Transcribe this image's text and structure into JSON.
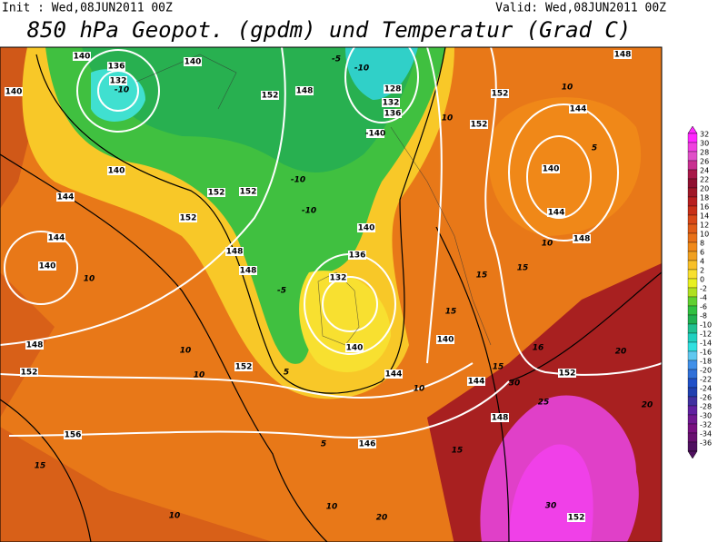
{
  "header": {
    "init": "Init : Wed,08JUN2011 00Z",
    "valid": "Valid: Wed,08JUN2011 00Z",
    "title": "850 hPa Geopot. (gpdm) und Temperatur (Grad C)"
  },
  "map": {
    "contour_labels": [
      "140",
      "140",
      "136",
      "132",
      "-10",
      "140",
      "152",
      "148",
      "-5",
      "-10",
      "128",
      "132",
      "136",
      "-140",
      "10",
      "152",
      "152",
      "148",
      "10",
      "144",
      "140",
      "144",
      "148",
      "10",
      "5",
      "140",
      "144",
      "144",
      "140",
      "10",
      "152",
      "152",
      "152",
      "148",
      "148",
      "140",
      "136",
      "132",
      "-5",
      "-10",
      "-10",
      "140",
      "144",
      "148",
      "152",
      "10",
      "10",
      "152",
      "5",
      "156",
      "15",
      "146",
      "5",
      "10",
      "10",
      "148",
      "15",
      "15",
      "15",
      "15",
      "152",
      "25",
      "20",
      "20",
      "30",
      "152",
      "20",
      "140",
      "10",
      "144",
      "30",
      "16",
      "15"
    ]
  },
  "colorbar": {
    "labels": [
      32,
      30,
      28,
      26,
      24,
      22,
      20,
      18,
      16,
      14,
      12,
      10,
      8,
      6,
      4,
      2,
      0,
      -2,
      -4,
      -6,
      -8,
      -10,
      -12,
      -14,
      -16,
      -18,
      -20,
      -22,
      -24,
      -26,
      -28,
      -30,
      -32,
      -34,
      -36
    ],
    "colors": [
      "#ff28ff",
      "#f040e0",
      "#e050c8",
      "#c83090",
      "#a81848",
      "#901030",
      "#a01828",
      "#b82020",
      "#c83018",
      "#d84818",
      "#e05c18",
      "#e87018",
      "#f08818",
      "#f0a020",
      "#f8c028",
      "#f8e030",
      "#e8f020",
      "#b0e020",
      "#60d030",
      "#30c040",
      "#20b050",
      "#20c090",
      "#20d0c0",
      "#30e0e0",
      "#60c8f0",
      "#4090e8",
      "#3070d8",
      "#2050c8",
      "#2040b0",
      "#4030a0",
      "#6020a0",
      "#701890",
      "#781080",
      "#681070",
      "#501060"
    ]
  }
}
